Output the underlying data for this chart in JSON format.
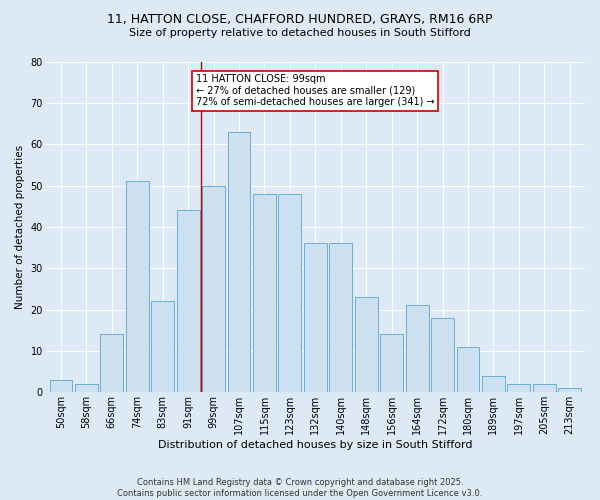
{
  "title1": "11, HATTON CLOSE, CHAFFORD HUNDRED, GRAYS, RM16 6RP",
  "title2": "Size of property relative to detached houses in South Stifford",
  "xlabel": "Distribution of detached houses by size in South Stifford",
  "ylabel": "Number of detached properties",
  "bar_values": [
    3,
    2,
    14,
    51,
    22,
    44,
    50,
    63,
    48,
    48,
    36,
    36,
    23,
    14,
    21,
    18,
    11,
    4,
    2,
    2,
    1
  ],
  "bin_labels": [
    "50sqm",
    "58sqm",
    "66sqm",
    "74sqm",
    "83sqm",
    "91sqm",
    "99sqm",
    "107sqm",
    "115sqm",
    "123sqm",
    "132sqm",
    "140sqm",
    "148sqm",
    "156sqm",
    "164sqm",
    "172sqm",
    "180sqm",
    "189sqm",
    "197sqm",
    "205sqm",
    "213sqm"
  ],
  "bar_color": "#cce0f0",
  "bar_edge_color": "#6aaed6",
  "annotation_text": "11 HATTON CLOSE: 99sqm\n← 27% of detached houses are smaller (129)\n72% of semi-detached houses are larger (341) →",
  "annotation_box_color": "#ffffff",
  "annotation_box_edge": "#cc0000",
  "vline_color": "#cc0000",
  "bg_color": "#ddeaf5",
  "grid_color": "#ffffff",
  "footer": "Contains HM Land Registry data © Crown copyright and database right 2025.\nContains public sector information licensed under the Open Government Licence v3.0.",
  "ylim": [
    0,
    80
  ],
  "yticks": [
    0,
    10,
    20,
    30,
    40,
    50,
    60,
    70,
    80
  ],
  "title1_fontsize": 9,
  "title2_fontsize": 8,
  "xlabel_fontsize": 8,
  "ylabel_fontsize": 7.5,
  "tick_fontsize": 7,
  "annotation_fontsize": 7,
  "footer_fontsize": 6
}
